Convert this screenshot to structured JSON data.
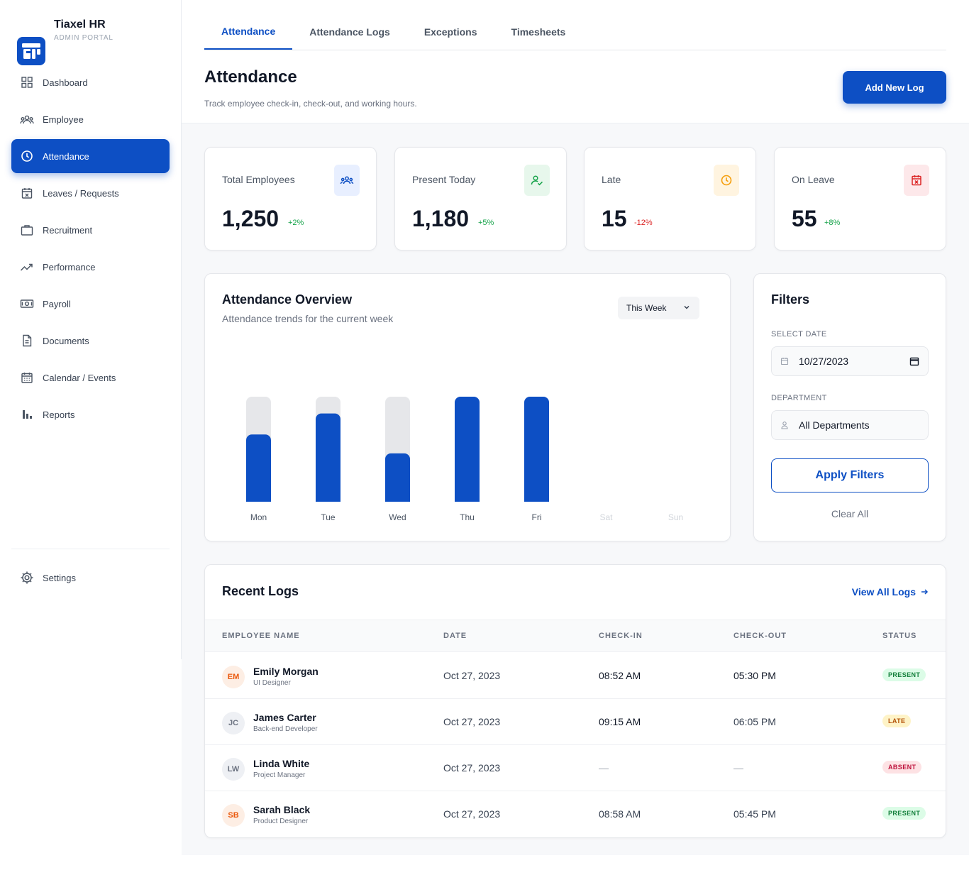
{
  "brand": {
    "name": "Tiaxel HR",
    "subtitle": "ADMIN PORTAL"
  },
  "sidebar": {
    "items": [
      {
        "label": "Dashboard",
        "icon": "grid-icon"
      },
      {
        "label": "Employee",
        "icon": "users-icon"
      },
      {
        "label": "Attendance",
        "icon": "clock-icon",
        "active": true
      },
      {
        "label": "Leaves / Requests",
        "icon": "calendar-x-icon"
      },
      {
        "label": "Recruitment",
        "icon": "briefcase-icon"
      },
      {
        "label": "Performance",
        "icon": "trending-up-icon"
      },
      {
        "label": "Payroll",
        "icon": "money-icon"
      },
      {
        "label": "Documents",
        "icon": "document-icon"
      },
      {
        "label": "Calendar / Events",
        "icon": "calendar-icon"
      },
      {
        "label": "Reports",
        "icon": "bar-chart-icon"
      }
    ],
    "settings": {
      "label": "Settings",
      "icon": "gear-icon"
    }
  },
  "tabs": [
    {
      "label": "Attendance",
      "active": true
    },
    {
      "label": "Attendance Logs"
    },
    {
      "label": "Exceptions"
    },
    {
      "label": "Timesheets"
    }
  ],
  "header": {
    "title": "Attendance",
    "subtitle": "Track employee check-in, check-out, and working hours.",
    "add_button": "Add New Log"
  },
  "stats": [
    {
      "label": "Total Employees",
      "value": "1,250",
      "trend": "+2%",
      "trend_color": "#16a34a",
      "icon": "users-icon",
      "icon_bg": "#e8efff",
      "icon_color": "#0d4fc4"
    },
    {
      "label": "Present Today",
      "value": "1,180",
      "trend": "+5%",
      "trend_color": "#16a34a",
      "icon": "user-check-icon",
      "icon_bg": "#e7f7ec",
      "icon_color": "#16a34a"
    },
    {
      "label": "Late",
      "value": "15",
      "trend": "-12%",
      "trend_color": "#dc2626",
      "icon": "clock-icon",
      "icon_bg": "#fff4e0",
      "icon_color": "#f59e0b"
    },
    {
      "label": "On Leave",
      "value": "55",
      "trend": "+8%",
      "trend_color": "#16a34a",
      "icon": "calendar-x-icon",
      "icon_bg": "#fde8ea",
      "icon_color": "#dc2626"
    }
  ],
  "overview": {
    "title": "Attendance Overview",
    "subtitle": "Attendance trends for the current week",
    "range_select": "This Week"
  },
  "chart_data": {
    "type": "bar",
    "categories": [
      "Mon",
      "Tue",
      "Wed",
      "Thu",
      "Fri",
      "Sat",
      "Sun"
    ],
    "values": [
      64,
      84,
      46,
      100,
      100,
      null,
      null
    ],
    "active_categories": [
      "Mon",
      "Tue",
      "Wed",
      "Thu",
      "Fri"
    ],
    "ylim": [
      0,
      100
    ],
    "grid": false,
    "bar_color": "#0d4fc4",
    "track_color": "#e6e7ea",
    "title": "Attendance Overview",
    "subtitle": "Attendance trends for the current week"
  },
  "filters": {
    "title": "Filters",
    "date_label": "SELECT DATE",
    "date_value": "10/27/2023",
    "department_label": "DEPARTMENT",
    "department_value": "All Departments",
    "apply_button": "Apply Filters",
    "clear_button": "Clear All"
  },
  "logs": {
    "title": "Recent Logs",
    "view_all": "View All Logs",
    "columns": [
      "EMPLOYEE NAME",
      "DATE",
      "CHECK-IN",
      "CHECK-OUT",
      "STATUS"
    ],
    "rows": [
      {
        "initials": "EM",
        "avatar_bg": "#fdeee4",
        "avatar_color": "#ea580c",
        "name": "Emily Morgan",
        "role": "UI Designer",
        "date": "Oct 27, 2023",
        "check_in": "08:52 AM",
        "check_out": "05:30 PM",
        "status": "PRESENT",
        "status_class": "present"
      },
      {
        "initials": "JC",
        "avatar_bg": "#eef0f4",
        "avatar_color": "#6b7280",
        "name": "James Carter",
        "role": "Back-end Developer",
        "date": "Oct 27, 2023",
        "check_in": "09:15 AM",
        "check_out": "06:05 PM",
        "status": "LATE",
        "status_class": "late"
      },
      {
        "initials": "LW",
        "avatar_bg": "#eef0f4",
        "avatar_color": "#6b7280",
        "name": "Linda White",
        "role": "Project Manager",
        "date": "Oct 27, 2023",
        "check_in": "—",
        "check_out": "—",
        "status": "ABSENT",
        "status_class": "absent"
      },
      {
        "initials": "SB",
        "avatar_bg": "#fdeee4",
        "avatar_color": "#ea580c",
        "name": "Sarah Black",
        "role": "Product Designer",
        "date": "Oct 27, 2023",
        "check_in": "08:58 AM",
        "check_out": "05:45 PM",
        "status": "PRESENT",
        "status_class": "present"
      }
    ]
  }
}
